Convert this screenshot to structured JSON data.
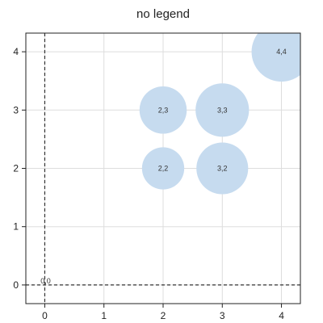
{
  "chart_data": {
    "type": "scatter",
    "title": "no legend",
    "xlabel": "",
    "ylabel": "",
    "xlim": [
      -0.32,
      4.32
    ],
    "ylim": [
      -0.32,
      4.32
    ],
    "x_ticks": [
      0,
      1,
      2,
      3,
      4
    ],
    "y_ticks": [
      0,
      1,
      2,
      3,
      4
    ],
    "grid": true,
    "legend": "none",
    "reference_lines": {
      "x": 0,
      "y": 0,
      "style": "dashed"
    },
    "points": [
      {
        "x": 0,
        "y": 0,
        "size": 0,
        "label": "0,0"
      },
      {
        "x": 2,
        "y": 2,
        "size": 2,
        "label": "2,2"
      },
      {
        "x": 2,
        "y": 3,
        "size": 2.5,
        "label": "2,3"
      },
      {
        "x": 3,
        "y": 2,
        "size": 3,
        "label": "3,2"
      },
      {
        "x": 3,
        "y": 3,
        "size": 3.2,
        "label": "3,3"
      },
      {
        "x": 4,
        "y": 4,
        "size": 4,
        "label": "4,4"
      }
    ],
    "marker_color": "#c6dbef",
    "grid_color": "#dddddd",
    "axis_color": "#222222"
  }
}
